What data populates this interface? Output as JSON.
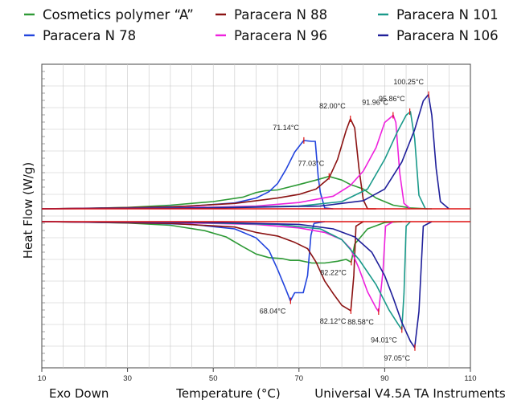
{
  "chart_data": {
    "type": "line",
    "xlabel": "Temperature (°C)",
    "ylabel": "Heat Flow (W/g)",
    "xlim": [
      10,
      110
    ],
    "xticks": [
      10,
      30,
      50,
      70,
      90,
      110
    ],
    "grid": true,
    "legend_position": "top",
    "footer_left": "Exo Down",
    "footer_right": "Universal V4.5A TA Instruments",
    "colors": {
      "Cosmetics polymer “A”": "#2e9a36",
      "Paracera N 78": "#2244dd",
      "Paracera N 88": "#8b1212",
      "Paracera N 96": "#ee22dd",
      "Paracera N 101": "#1a9a8a",
      "Paracera N 106": "#1f1f9a",
      "baseline": "#dd1111"
    },
    "legend": [
      "Cosmetics polymer “A”",
      "Paracera N 88",
      "Paracera N 101",
      "Paracera N 78",
      "Paracera N 96",
      "Paracera N 106"
    ],
    "series": [
      {
        "name": "Cosmetics polymer “A”",
        "heating": [
          [
            10,
            0
          ],
          [
            20,
            0.5
          ],
          [
            30,
            1.5
          ],
          [
            40,
            4
          ],
          [
            50,
            8
          ],
          [
            57,
            13
          ],
          [
            60,
            18
          ],
          [
            62,
            20
          ],
          [
            65,
            21
          ],
          [
            70,
            27
          ],
          [
            74,
            32
          ],
          [
            77,
            36
          ],
          [
            80,
            32
          ],
          [
            82,
            27
          ],
          [
            85,
            22
          ],
          [
            88,
            12
          ],
          [
            92,
            4
          ],
          [
            96,
            1
          ],
          [
            100,
            0
          ]
        ],
        "cooling": [
          [
            10,
            0
          ],
          [
            20,
            -0.5
          ],
          [
            30,
            -1.5
          ],
          [
            40,
            -4
          ],
          [
            48,
            -10
          ],
          [
            53,
            -17
          ],
          [
            57,
            -28
          ],
          [
            60,
            -36
          ],
          [
            63,
            -40
          ],
          [
            66,
            -41
          ],
          [
            68,
            -43
          ],
          [
            70,
            -43
          ],
          [
            73,
            -46
          ],
          [
            76,
            -46
          ],
          [
            79,
            -44
          ],
          [
            81,
            -42
          ],
          [
            82.2,
            -45
          ],
          [
            83,
            -25
          ],
          [
            86,
            -8
          ],
          [
            90,
            -1
          ],
          [
            94,
            0
          ]
        ]
      },
      {
        "name": "Paracera N 78",
        "heating": [
          [
            10,
            0
          ],
          [
            30,
            1
          ],
          [
            45,
            3
          ],
          [
            55,
            6.5
          ],
          [
            60,
            12
          ],
          [
            63,
            19
          ],
          [
            65,
            28
          ],
          [
            67,
            44
          ],
          [
            69,
            63
          ],
          [
            71.1,
            76
          ],
          [
            73,
            75
          ],
          [
            73.8,
            75
          ],
          [
            74.5,
            35
          ],
          [
            75,
            18
          ],
          [
            76,
            1
          ],
          [
            78,
            0
          ]
        ],
        "cooling": [
          [
            10,
            0
          ],
          [
            30,
            -1
          ],
          [
            45,
            -3
          ],
          [
            55,
            -8
          ],
          [
            60,
            -18
          ],
          [
            63,
            -32
          ],
          [
            65,
            -53
          ],
          [
            67,
            -76
          ],
          [
            68,
            -88
          ],
          [
            69,
            -79
          ],
          [
            71,
            -79
          ],
          [
            72,
            -60
          ],
          [
            72.8,
            -15
          ],
          [
            73.5,
            -2
          ],
          [
            76,
            0
          ]
        ]
      },
      {
        "name": "Paracera N 88",
        "heating": [
          [
            10,
            0
          ],
          [
            40,
            2
          ],
          [
            55,
            6
          ],
          [
            65,
            12
          ],
          [
            70,
            16
          ],
          [
            74,
            22
          ],
          [
            77,
            34
          ],
          [
            79,
            55
          ],
          [
            81,
            87
          ],
          [
            82,
            100
          ],
          [
            83,
            90
          ],
          [
            84,
            45
          ],
          [
            85,
            10
          ],
          [
            86,
            0
          ],
          [
            88,
            0
          ]
        ],
        "cooling": [
          [
            10,
            0
          ],
          [
            40,
            -2
          ],
          [
            55,
            -6
          ],
          [
            60,
            -12
          ],
          [
            65,
            -16
          ],
          [
            69,
            -23
          ],
          [
            72,
            -30
          ],
          [
            74,
            -45
          ],
          [
            76,
            -66
          ],
          [
            78,
            -80
          ],
          [
            80,
            -93
          ],
          [
            82.1,
            -99
          ],
          [
            82.8,
            -60
          ],
          [
            83.3,
            -5
          ],
          [
            85,
            0
          ]
        ]
      },
      {
        "name": "Paracera N 96",
        "heating": [
          [
            10,
            0
          ],
          [
            40,
            1
          ],
          [
            60,
            3
          ],
          [
            70,
            7
          ],
          [
            78,
            14
          ],
          [
            82,
            26
          ],
          [
            85,
            42
          ],
          [
            88,
            68
          ],
          [
            90,
            96
          ],
          [
            92,
            104
          ],
          [
            92.6,
            96
          ],
          [
            93.5,
            40
          ],
          [
            94.5,
            6
          ],
          [
            96,
            0
          ]
        ],
        "cooling": [
          [
            10,
            0
          ],
          [
            40,
            -1
          ],
          [
            60,
            -3
          ],
          [
            70,
            -7
          ],
          [
            76,
            -12
          ],
          [
            80,
            -20
          ],
          [
            82,
            -30
          ],
          [
            84,
            -52
          ],
          [
            86,
            -78
          ],
          [
            88,
            -96
          ],
          [
            88.6,
            -100
          ],
          [
            89.6,
            -55
          ],
          [
            90.2,
            -5
          ],
          [
            92,
            0
          ]
        ]
      },
      {
        "name": "Paracera N 101",
        "heating": [
          [
            10,
            0
          ],
          [
            45,
            1
          ],
          [
            70,
            3
          ],
          [
            80,
            8
          ],
          [
            86,
            22
          ],
          [
            90,
            55
          ],
          [
            93,
            86
          ],
          [
            95,
            104
          ],
          [
            96,
            108
          ],
          [
            97,
            78
          ],
          [
            98,
            15
          ],
          [
            99.5,
            0
          ],
          [
            101,
            0
          ]
        ],
        "cooling": [
          [
            10,
            0
          ],
          [
            45,
            -1
          ],
          [
            65,
            -3
          ],
          [
            75,
            -8
          ],
          [
            80,
            -20
          ],
          [
            84,
            -42
          ],
          [
            88,
            -70
          ],
          [
            91,
            -98
          ],
          [
            93,
            -113
          ],
          [
            94,
            -120
          ],
          [
            94.5,
            -80
          ],
          [
            95,
            -5
          ],
          [
            96,
            0
          ]
        ]
      },
      {
        "name": "Paracera N 106",
        "heating": [
          [
            10,
            0
          ],
          [
            50,
            1
          ],
          [
            75,
            3
          ],
          [
            85,
            9
          ],
          [
            90,
            22
          ],
          [
            94,
            52
          ],
          [
            97,
            88
          ],
          [
            99,
            120
          ],
          [
            100.2,
            127
          ],
          [
            101,
            104
          ],
          [
            102,
            45
          ],
          [
            103,
            8
          ],
          [
            105,
            0
          ]
        ],
        "cooling": [
          [
            10,
            0
          ],
          [
            50,
            -1
          ],
          [
            70,
            -3
          ],
          [
            78,
            -8
          ],
          [
            83,
            -17
          ],
          [
            87,
            -34
          ],
          [
            90,
            -60
          ],
          [
            92,
            -85
          ],
          [
            94,
            -112
          ],
          [
            96,
            -133
          ],
          [
            97,
            -140
          ],
          [
            98,
            -100
          ],
          [
            99,
            -5
          ],
          [
            101,
            0
          ]
        ]
      }
    ],
    "baselines": [
      0
    ],
    "annotations": [
      {
        "label": "100.25°C",
        "x": 100.25,
        "y": 127
      },
      {
        "label": "95.86°C",
        "x": 95.86,
        "y": 108
      },
      {
        "label": "82.00°C",
        "x": 82.0,
        "y": 100
      },
      {
        "label": "91.96°C",
        "x": 91.96,
        "y": 104
      },
      {
        "label": "71.14°C",
        "x": 71.14,
        "y": 76
      },
      {
        "label": "77.03°C",
        "x": 77.03,
        "y": 36
      },
      {
        "label": "82.22°C",
        "x": 82.22,
        "y": -45
      },
      {
        "label": "68.04°C",
        "x": 68.04,
        "y": -88
      },
      {
        "label": "82.12°C",
        "x": 82.12,
        "y": -99
      },
      {
        "label": "88.58°C",
        "x": 88.58,
        "y": -100
      },
      {
        "label": "94.01°C",
        "x": 94.01,
        "y": -120
      },
      {
        "label": "97.05°C",
        "x": 97.05,
        "y": -140
      }
    ]
  }
}
